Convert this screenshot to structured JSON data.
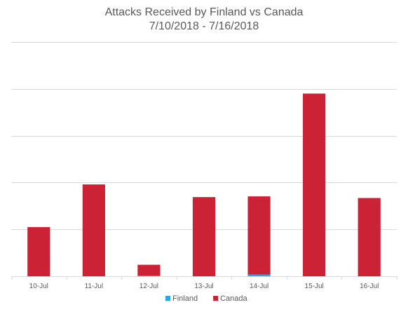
{
  "chart_data": {
    "type": "bar",
    "stacked": true,
    "title": "Attacks Received by Finland vs Canada",
    "subtitle": "7/10/2018 - 7/16/2018",
    "categories": [
      "10-Jul",
      "11-Jul",
      "12-Jul",
      "13-Jul",
      "14-Jul",
      "15-Jul",
      "16-Jul"
    ],
    "series": [
      {
        "name": "Finland",
        "color": "#29a8db",
        "values": [
          0,
          0,
          1.5,
          0,
          3.5,
          0,
          0
        ]
      },
      {
        "name": "Canada",
        "color": "#cc2236",
        "values": [
          105,
          196,
          23,
          169,
          167,
          390,
          167
        ]
      }
    ],
    "ylim": [
      0,
      500
    ],
    "gridlines": [
      100,
      200,
      300,
      400,
      500
    ],
    "grid": true,
    "legend": "bottom"
  }
}
